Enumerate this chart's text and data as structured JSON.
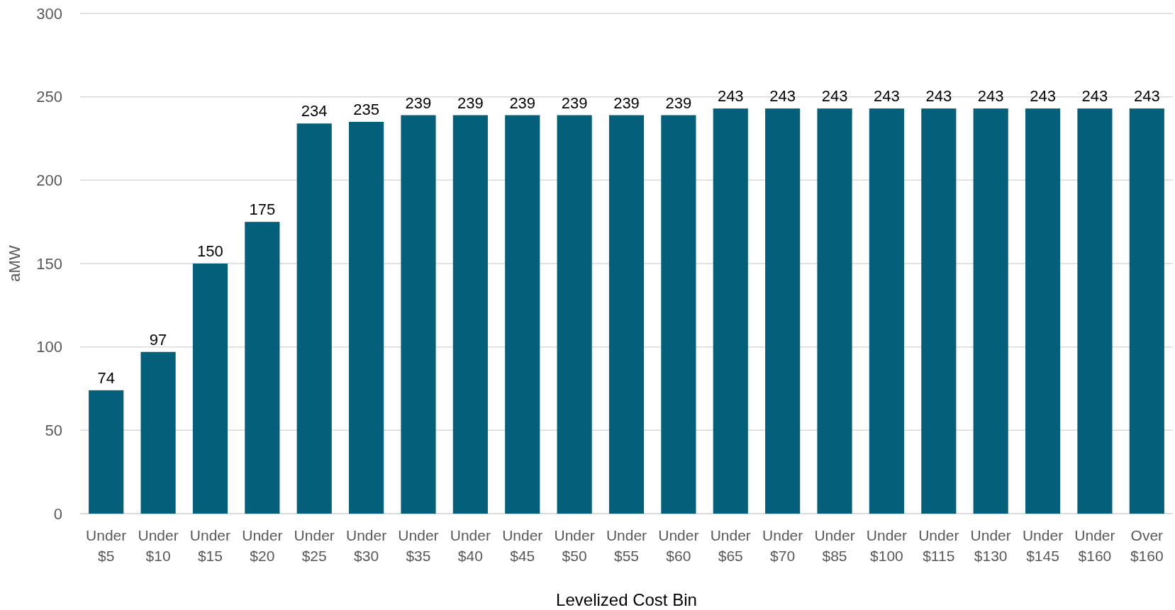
{
  "chart_data": {
    "type": "bar",
    "xlabel": "Levelized Cost Bin",
    "ylabel": "aMW",
    "categories": [
      "Under $5",
      "Under $10",
      "Under $15",
      "Under $20",
      "Under $25",
      "Under $30",
      "Under $35",
      "Under $40",
      "Under $45",
      "Under $50",
      "Under $55",
      "Under $60",
      "Under $65",
      "Under $70",
      "Under $85",
      "Under $100",
      "Under $115",
      "Under $130",
      "Under $145",
      "Under $160",
      "Over $160"
    ],
    "values": [
      74,
      97,
      150,
      175,
      234,
      235,
      239,
      239,
      239,
      239,
      239,
      239,
      243,
      243,
      243,
      243,
      243,
      243,
      243,
      243,
      243
    ],
    "color": "#045f7a",
    "ylim": [
      0,
      300
    ],
    "yticks": [
      0,
      50,
      100,
      150,
      200,
      250,
      300
    ],
    "grid": "y",
    "data_labels": true
  }
}
